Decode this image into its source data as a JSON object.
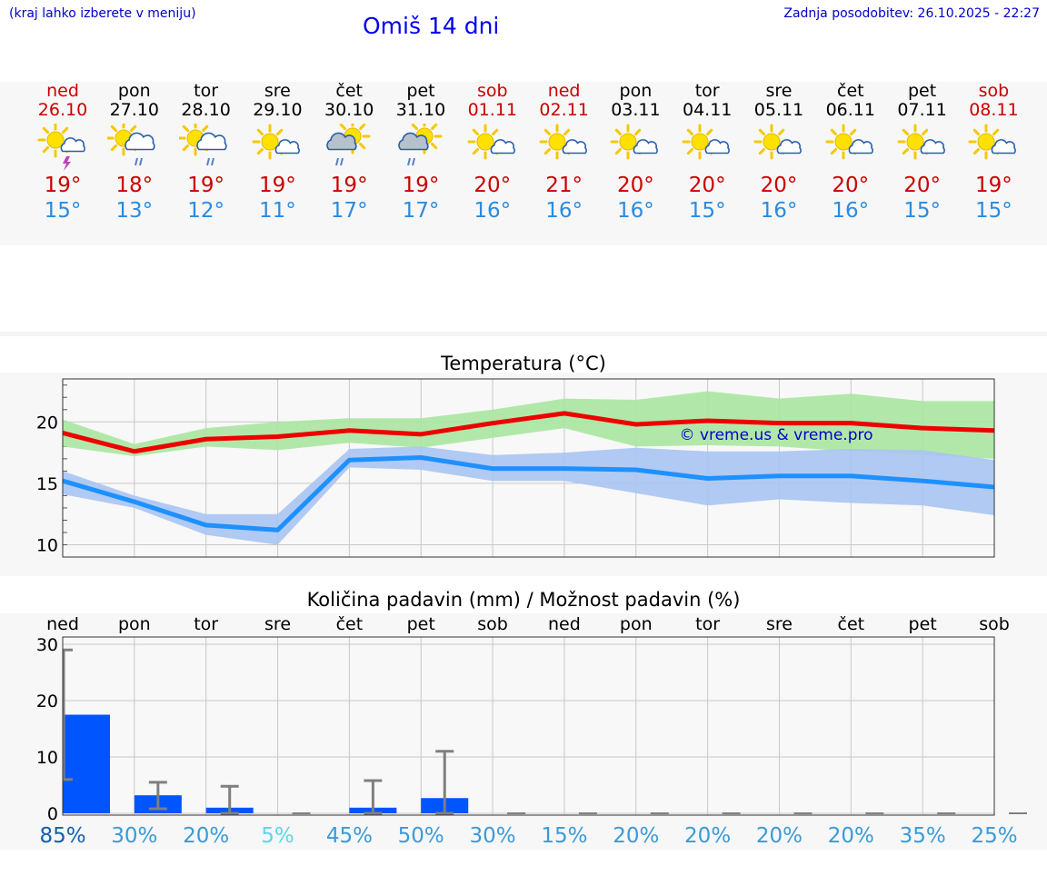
{
  "header": {
    "hint": "(kraj lahko izberete v meniju)",
    "title": "Omiš 14 dni",
    "updated": "Zadnja posodobitev: 26.10.2025 - 22:27"
  },
  "days": [
    {
      "name": "ned",
      "date": "26.10",
      "weekend": true,
      "icon": "sun-cloud-thunder-icon",
      "tmax": "19°",
      "tmin": "15°"
    },
    {
      "name": "pon",
      "date": "27.10",
      "weekend": false,
      "icon": "sun-cloud-rain-icon",
      "tmax": "18°",
      "tmin": "13°"
    },
    {
      "name": "tor",
      "date": "28.10",
      "weekend": false,
      "icon": "sun-cloud-rain-icon",
      "tmax": "19°",
      "tmin": "12°"
    },
    {
      "name": "sre",
      "date": "29.10",
      "weekend": false,
      "icon": "sun-small-cloud-icon",
      "tmax": "19°",
      "tmin": "11°"
    },
    {
      "name": "čet",
      "date": "30.10",
      "weekend": false,
      "icon": "sun-dark-cloud-rain-icon",
      "tmax": "19°",
      "tmin": "17°"
    },
    {
      "name": "pet",
      "date": "31.10",
      "weekend": false,
      "icon": "sun-dark-cloud-rain-icon",
      "tmax": "19°",
      "tmin": "17°"
    },
    {
      "name": "sob",
      "date": "01.11",
      "weekend": true,
      "icon": "sun-small-cloud-icon",
      "tmax": "20°",
      "tmin": "16°"
    },
    {
      "name": "ned",
      "date": "02.11",
      "weekend": true,
      "icon": "sun-small-cloud-icon",
      "tmax": "21°",
      "tmin": "16°"
    },
    {
      "name": "pon",
      "date": "03.11",
      "weekend": false,
      "icon": "sun-small-cloud-icon",
      "tmax": "20°",
      "tmin": "16°"
    },
    {
      "name": "tor",
      "date": "04.11",
      "weekend": false,
      "icon": "sun-small-cloud-icon",
      "tmax": "20°",
      "tmin": "15°"
    },
    {
      "name": "sre",
      "date": "05.11",
      "weekend": false,
      "icon": "sun-small-cloud-icon",
      "tmax": "20°",
      "tmin": "16°"
    },
    {
      "name": "čet",
      "date": "06.11",
      "weekend": false,
      "icon": "sun-small-cloud-icon",
      "tmax": "20°",
      "tmin": "16°"
    },
    {
      "name": "pet",
      "date": "07.11",
      "weekend": false,
      "icon": "sun-small-cloud-icon",
      "tmax": "20°",
      "tmin": "15°"
    },
    {
      "name": "sob",
      "date": "08.11",
      "weekend": true,
      "icon": "sun-small-cloud-icon",
      "tmax": "19°",
      "tmin": "15°"
    }
  ],
  "colors": {
    "max_line": "#ee0000",
    "max_band": "#a8e6a0",
    "min_line": "#1e90ff",
    "min_band": "#a9c4f2",
    "bar": "#0055ff",
    "errorbar": "#7f7f7f",
    "weekend": "#cc0000"
  },
  "chart_data": [
    {
      "type": "line",
      "title": "Temperatura (°C)",
      "watermark": "© vreme.us & vreme.pro",
      "ylim": [
        9,
        23.5
      ],
      "yticks": [
        10,
        15,
        20
      ],
      "x": [
        0,
        1,
        2,
        3,
        4,
        5,
        6,
        7,
        8,
        9,
        10,
        11,
        12,
        13
      ],
      "series": [
        {
          "name": "max",
          "values": [
            19.1,
            17.6,
            18.6,
            18.8,
            19.3,
            19.0,
            19.9,
            20.7,
            19.8,
            20.1,
            19.9,
            19.9,
            19.5,
            19.3
          ],
          "band_low": [
            18.0,
            17.2,
            18.0,
            17.7,
            18.3,
            17.9,
            18.7,
            19.5,
            18.0,
            18.1,
            18.0,
            17.6,
            17.3,
            17.0
          ],
          "band_high": [
            20.2,
            18.2,
            19.5,
            20.0,
            20.3,
            20.3,
            21.0,
            21.9,
            21.8,
            22.5,
            21.9,
            22.3,
            21.7,
            21.7
          ]
        },
        {
          "name": "min",
          "values": [
            15.2,
            13.5,
            11.6,
            11.2,
            16.9,
            17.1,
            16.2,
            16.2,
            16.1,
            15.4,
            15.6,
            15.6,
            15.2,
            14.7
          ],
          "band_low": [
            14.1,
            13.0,
            10.8,
            10.0,
            16.3,
            16.1,
            15.2,
            15.2,
            14.2,
            13.2,
            13.7,
            13.4,
            13.2,
            12.4
          ],
          "band_high": [
            16.0,
            14.0,
            12.5,
            12.5,
            17.8,
            18.0,
            17.3,
            17.5,
            17.9,
            17.6,
            17.6,
            17.8,
            17.7,
            16.9
          ]
        }
      ]
    },
    {
      "type": "bar",
      "title": "Količina padavin (mm) / Možnost padavin (%)",
      "ylim": [
        0,
        30
      ],
      "yticks": [
        0,
        10,
        20,
        30
      ],
      "categories": [
        "ned",
        "pon",
        "tor",
        "sre",
        "čet",
        "pet",
        "sob",
        "ned",
        "pon",
        "tor",
        "sre",
        "čet",
        "pet",
        "sob"
      ],
      "values": [
        17.5,
        3.2,
        1.0,
        0,
        1.0,
        2.7,
        0,
        0,
        0,
        0,
        0,
        0,
        0,
        0
      ],
      "err_low": [
        6.0,
        0.8,
        0,
        0,
        0,
        0,
        0,
        0,
        0,
        0,
        0,
        0,
        0,
        0
      ],
      "err_high": [
        29.0,
        5.5,
        4.8,
        0,
        5.8,
        11.0,
        0,
        0,
        0,
        0,
        0,
        0,
        0,
        0
      ],
      "probability": [
        "85%",
        "30%",
        "20%",
        "5%",
        "45%",
        "50%",
        "30%",
        "15%",
        "20%",
        "20%",
        "20%",
        "20%",
        "35%",
        "25%"
      ],
      "probability_colors": [
        "#1060b0",
        "#3a9ad8",
        "#3a9ad8",
        "#58d8e8",
        "#3a9ad8",
        "#3a9ad8",
        "#3a9ad8",
        "#3a9ad8",
        "#3a9ad8",
        "#3a9ad8",
        "#3a9ad8",
        "#3a9ad8",
        "#3a9ad8",
        "#3a9ad8"
      ]
    }
  ]
}
